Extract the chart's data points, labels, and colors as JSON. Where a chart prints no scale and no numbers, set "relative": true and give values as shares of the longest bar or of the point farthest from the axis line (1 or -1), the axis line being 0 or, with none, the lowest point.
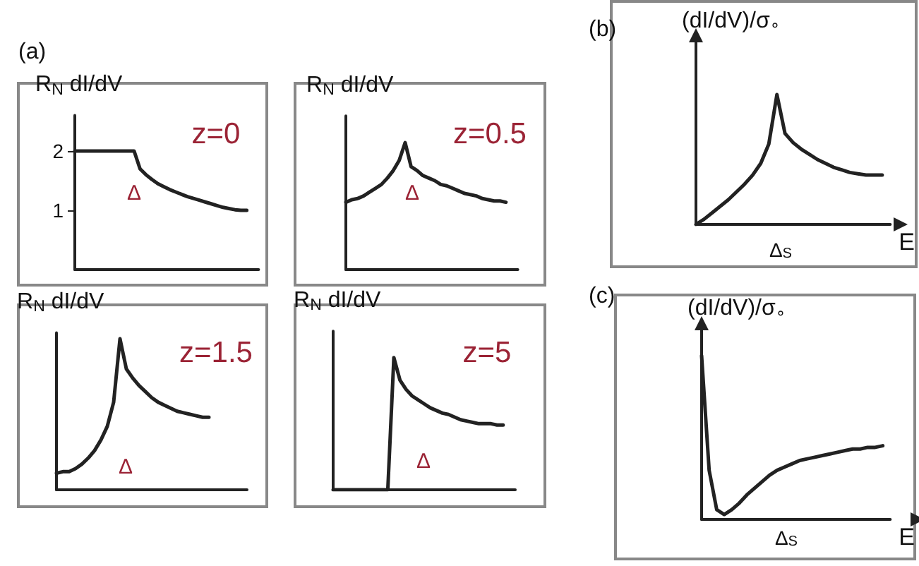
{
  "chart_data": [
    {
      "type": "line",
      "title": "(a)",
      "ylabel": "R$_{N}$ dI/dV",
      "annotations": [
        "z=0",
        "Δ"
      ],
      "ylim": [
        0,
        2.6
      ],
      "yticks": [
        1,
        2
      ],
      "categories": [
        null,
        null,
        null,
        null,
        null,
        null,
        null,
        null,
        null,
        null,
        null,
        null,
        null,
        null,
        null,
        null,
        null,
        null,
        null,
        null,
        null,
        null,
        null,
        null,
        null,
        null,
        null,
        null,
        null,
        null
      ],
      "series": [
        {
          "color": "#222222",
          "values": [
            2,
            2,
            2,
            2,
            2,
            2,
            2,
            2,
            2,
            2,
            2,
            1.7,
            1.6,
            1.52,
            1.45,
            1.4,
            1.35,
            1.31,
            1.27,
            1.23,
            1.2,
            1.17,
            1.14,
            1.11,
            1.08,
            1.05,
            1.03,
            1.01,
            1.0,
            1.0
          ]
        }
      ]
    },
    {
      "type": "line",
      "ylabel": "R$_{N}$ dI/dV",
      "annotations": [
        "z=0.5",
        "Δ"
      ],
      "relative": true,
      "categories": [
        null,
        null,
        null,
        null,
        null,
        null,
        null,
        null,
        null,
        null,
        null,
        null,
        null,
        null,
        null,
        null,
        null,
        null,
        null,
        null,
        null,
        null,
        null,
        null,
        null,
        null,
        null,
        null
      ],
      "series": [
        {
          "color": "#222222",
          "values": [
            0.53,
            0.55,
            0.56,
            0.58,
            0.61,
            0.64,
            0.67,
            0.72,
            0.78,
            0.86,
            1,
            0.81,
            0.78,
            0.74,
            0.72,
            0.7,
            0.67,
            0.66,
            0.64,
            0.62,
            0.6,
            0.59,
            0.58,
            0.56,
            0.55,
            0.54,
            0.54,
            0.53
          ]
        }
      ]
    },
    {
      "type": "line",
      "ylabel": "R$_{N}$ dI/dV",
      "annotations": [
        "z=1.5",
        "Δ"
      ],
      "relative": true,
      "categories": [
        null,
        null,
        null,
        null,
        null,
        null,
        null,
        null,
        null,
        null,
        null,
        null,
        null,
        null,
        null,
        null,
        null,
        null,
        null,
        null,
        null,
        null,
        null,
        null,
        null
      ],
      "series": [
        {
          "color": "#222222",
          "values": [
            0.11,
            0.12,
            0.12,
            0.14,
            0.17,
            0.21,
            0.26,
            0.33,
            0.42,
            0.58,
            1,
            0.8,
            0.74,
            0.69,
            0.65,
            0.61,
            0.58,
            0.56,
            0.54,
            0.52,
            0.51,
            0.5,
            0.49,
            0.48,
            0.48
          ]
        }
      ]
    },
    {
      "type": "line",
      "ylabel": "R$_{N}$ dI/dV",
      "annotations": [
        "z=5",
        "Δ"
      ],
      "relative": true,
      "categories": [
        null,
        null,
        null,
        null,
        null,
        null,
        null,
        null,
        null,
        null,
        null,
        null,
        null,
        null,
        null,
        null,
        null,
        null,
        null,
        null,
        null,
        null,
        null,
        null,
        null,
        null,
        null,
        null,
        null
      ],
      "series": [
        {
          "color": "#222222",
          "values": [
            0,
            0,
            0,
            0,
            0,
            0,
            0,
            0,
            0,
            0,
            1,
            0.83,
            0.76,
            0.71,
            0.68,
            0.65,
            0.62,
            0.6,
            0.58,
            0.57,
            0.55,
            0.53,
            0.52,
            0.51,
            0.5,
            0.5,
            0.5,
            0.49,
            0.49
          ]
        }
      ]
    },
    {
      "type": "line",
      "title": "(b)",
      "ylabel": "(dI/dV)/σ$_{∘}$",
      "xlabel": "E",
      "annotations": [
        "Δ$_{S}$"
      ],
      "relative": true,
      "categories": [
        null,
        null,
        null,
        null,
        null,
        null,
        null,
        null,
        null,
        null,
        null,
        null,
        null,
        null,
        null,
        null,
        null,
        null,
        null,
        null,
        null,
        null,
        null,
        null
      ],
      "series": [
        {
          "color": "#222222",
          "values": [
            0,
            0.04,
            0.09,
            0.14,
            0.19,
            0.25,
            0.31,
            0.38,
            0.47,
            0.62,
            1,
            0.7,
            0.63,
            0.58,
            0.54,
            0.5,
            0.47,
            0.44,
            0.42,
            0.4,
            0.39,
            0.38,
            0.38,
            0.38
          ]
        }
      ]
    },
    {
      "type": "line",
      "title": "(c)",
      "ylabel": "(dI/dV)/σ$_{∘}$",
      "xlabel": "E",
      "annotations": [
        "Δ$_{S}$"
      ],
      "relative": true,
      "categories": [
        null,
        null,
        null,
        null,
        null,
        null,
        null,
        null,
        null,
        null,
        null,
        null,
        null,
        null,
        null,
        null,
        null,
        null,
        null,
        null,
        null,
        null,
        null,
        null,
        null
      ],
      "series": [
        {
          "color": "#222222",
          "values": [
            1,
            0.3,
            0.06,
            0.03,
            0.06,
            0.1,
            0.15,
            0.19,
            0.23,
            0.27,
            0.3,
            0.32,
            0.34,
            0.36,
            0.37,
            0.38,
            0.39,
            0.4,
            0.41,
            0.42,
            0.43,
            0.43,
            0.44,
            0.44,
            0.45
          ]
        }
      ]
    }
  ]
}
